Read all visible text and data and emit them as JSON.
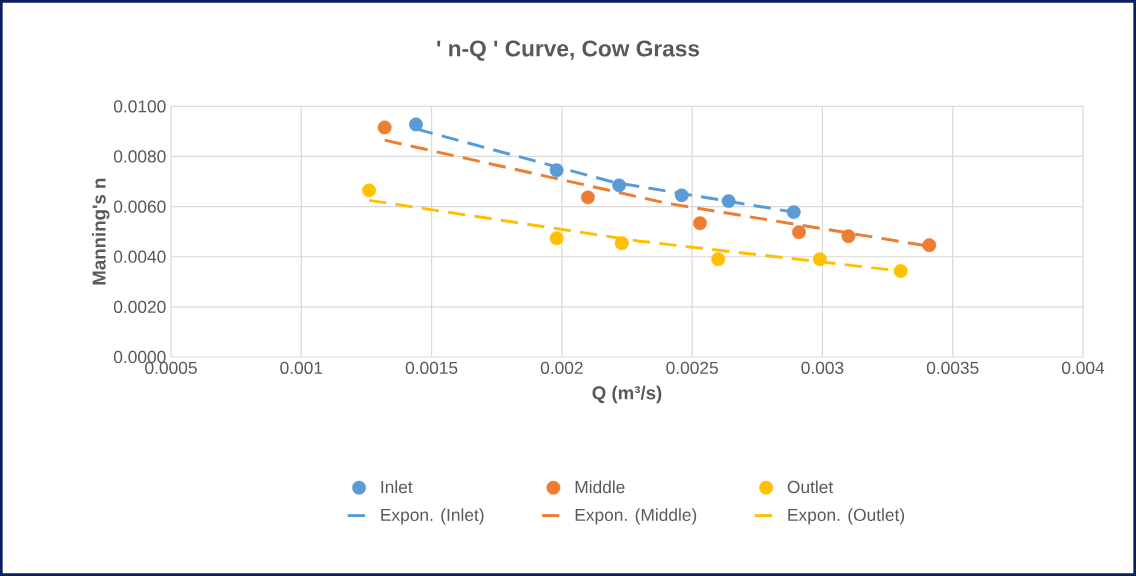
{
  "chart_data": {
    "type": "scatter",
    "title": "' n-Q ' Curve, Cow Grass",
    "xlabel": "Q (m³/s)",
    "ylabel": "Manning's n",
    "xlim": [
      0.0005,
      0.004
    ],
    "xticks": [
      0.0005,
      0.001,
      0.0015,
      0.002,
      0.0025,
      0.003,
      0.0035,
      0.004
    ],
    "ylim": [
      0,
      0.01
    ],
    "yticks": [
      {
        "value": 0,
        "label": "0.0000"
      },
      {
        "value": 0.002,
        "label": "0.0020"
      },
      {
        "value": 0.004,
        "label": "0.0040"
      },
      {
        "value": 0.006,
        "label": "0.0060"
      },
      {
        "value": 0.008,
        "label": "0.0080"
      },
      {
        "value": 0.01,
        "label": "0.0100"
      }
    ],
    "grid": true,
    "legend": "bottom",
    "series": [
      {
        "name": "Inlet",
        "marker": "circle",
        "color": "#5b9bd5",
        "x": [
          0.00144,
          0.00198,
          0.00222,
          0.00246,
          0.00264,
          0.00289
        ],
        "values": [
          0.00928,
          0.00745,
          0.00685,
          0.00645,
          0.00622,
          0.00578
        ]
      },
      {
        "name": "Middle",
        "marker": "circle",
        "color": "#ed7d31",
        "x": [
          0.00132,
          0.0021,
          0.00253,
          0.00291,
          0.0031,
          0.00341
        ],
        "values": [
          0.00916,
          0.00637,
          0.00534,
          0.00498,
          0.00482,
          0.00446
        ]
      },
      {
        "name": "Outlet",
        "marker": "circle",
        "color": "#ffc000",
        "x": [
          0.00126,
          0.00198,
          0.00223,
          0.0026,
          0.00299,
          0.0033
        ],
        "values": [
          0.00665,
          0.00474,
          0.00454,
          0.0039,
          0.0039,
          0.00343
        ]
      },
      {
        "name": "Expon. (Inlet)",
        "type": "line",
        "marker": "none",
        "line_style": "dashed",
        "color": "#5b9bd5",
        "x": [
          0.00144,
          0.0022,
          0.00289
        ],
        "values": [
          0.0091,
          0.00697,
          0.00578
        ]
      },
      {
        "name": "Expon. (Middle)",
        "type": "line",
        "marker": "none",
        "line_style": "dashed",
        "color": "#ed7d31",
        "x": [
          0.00132,
          0.0024,
          0.00341
        ],
        "values": [
          0.00865,
          0.00614,
          0.00442
        ]
      },
      {
        "name": "Expon. (Outlet)",
        "type": "line",
        "marker": "none",
        "line_style": "dashed",
        "color": "#ffc000",
        "x": [
          0.00126,
          0.0023,
          0.0033
        ],
        "values": [
          0.00625,
          0.00462,
          0.00343
        ]
      }
    ]
  }
}
